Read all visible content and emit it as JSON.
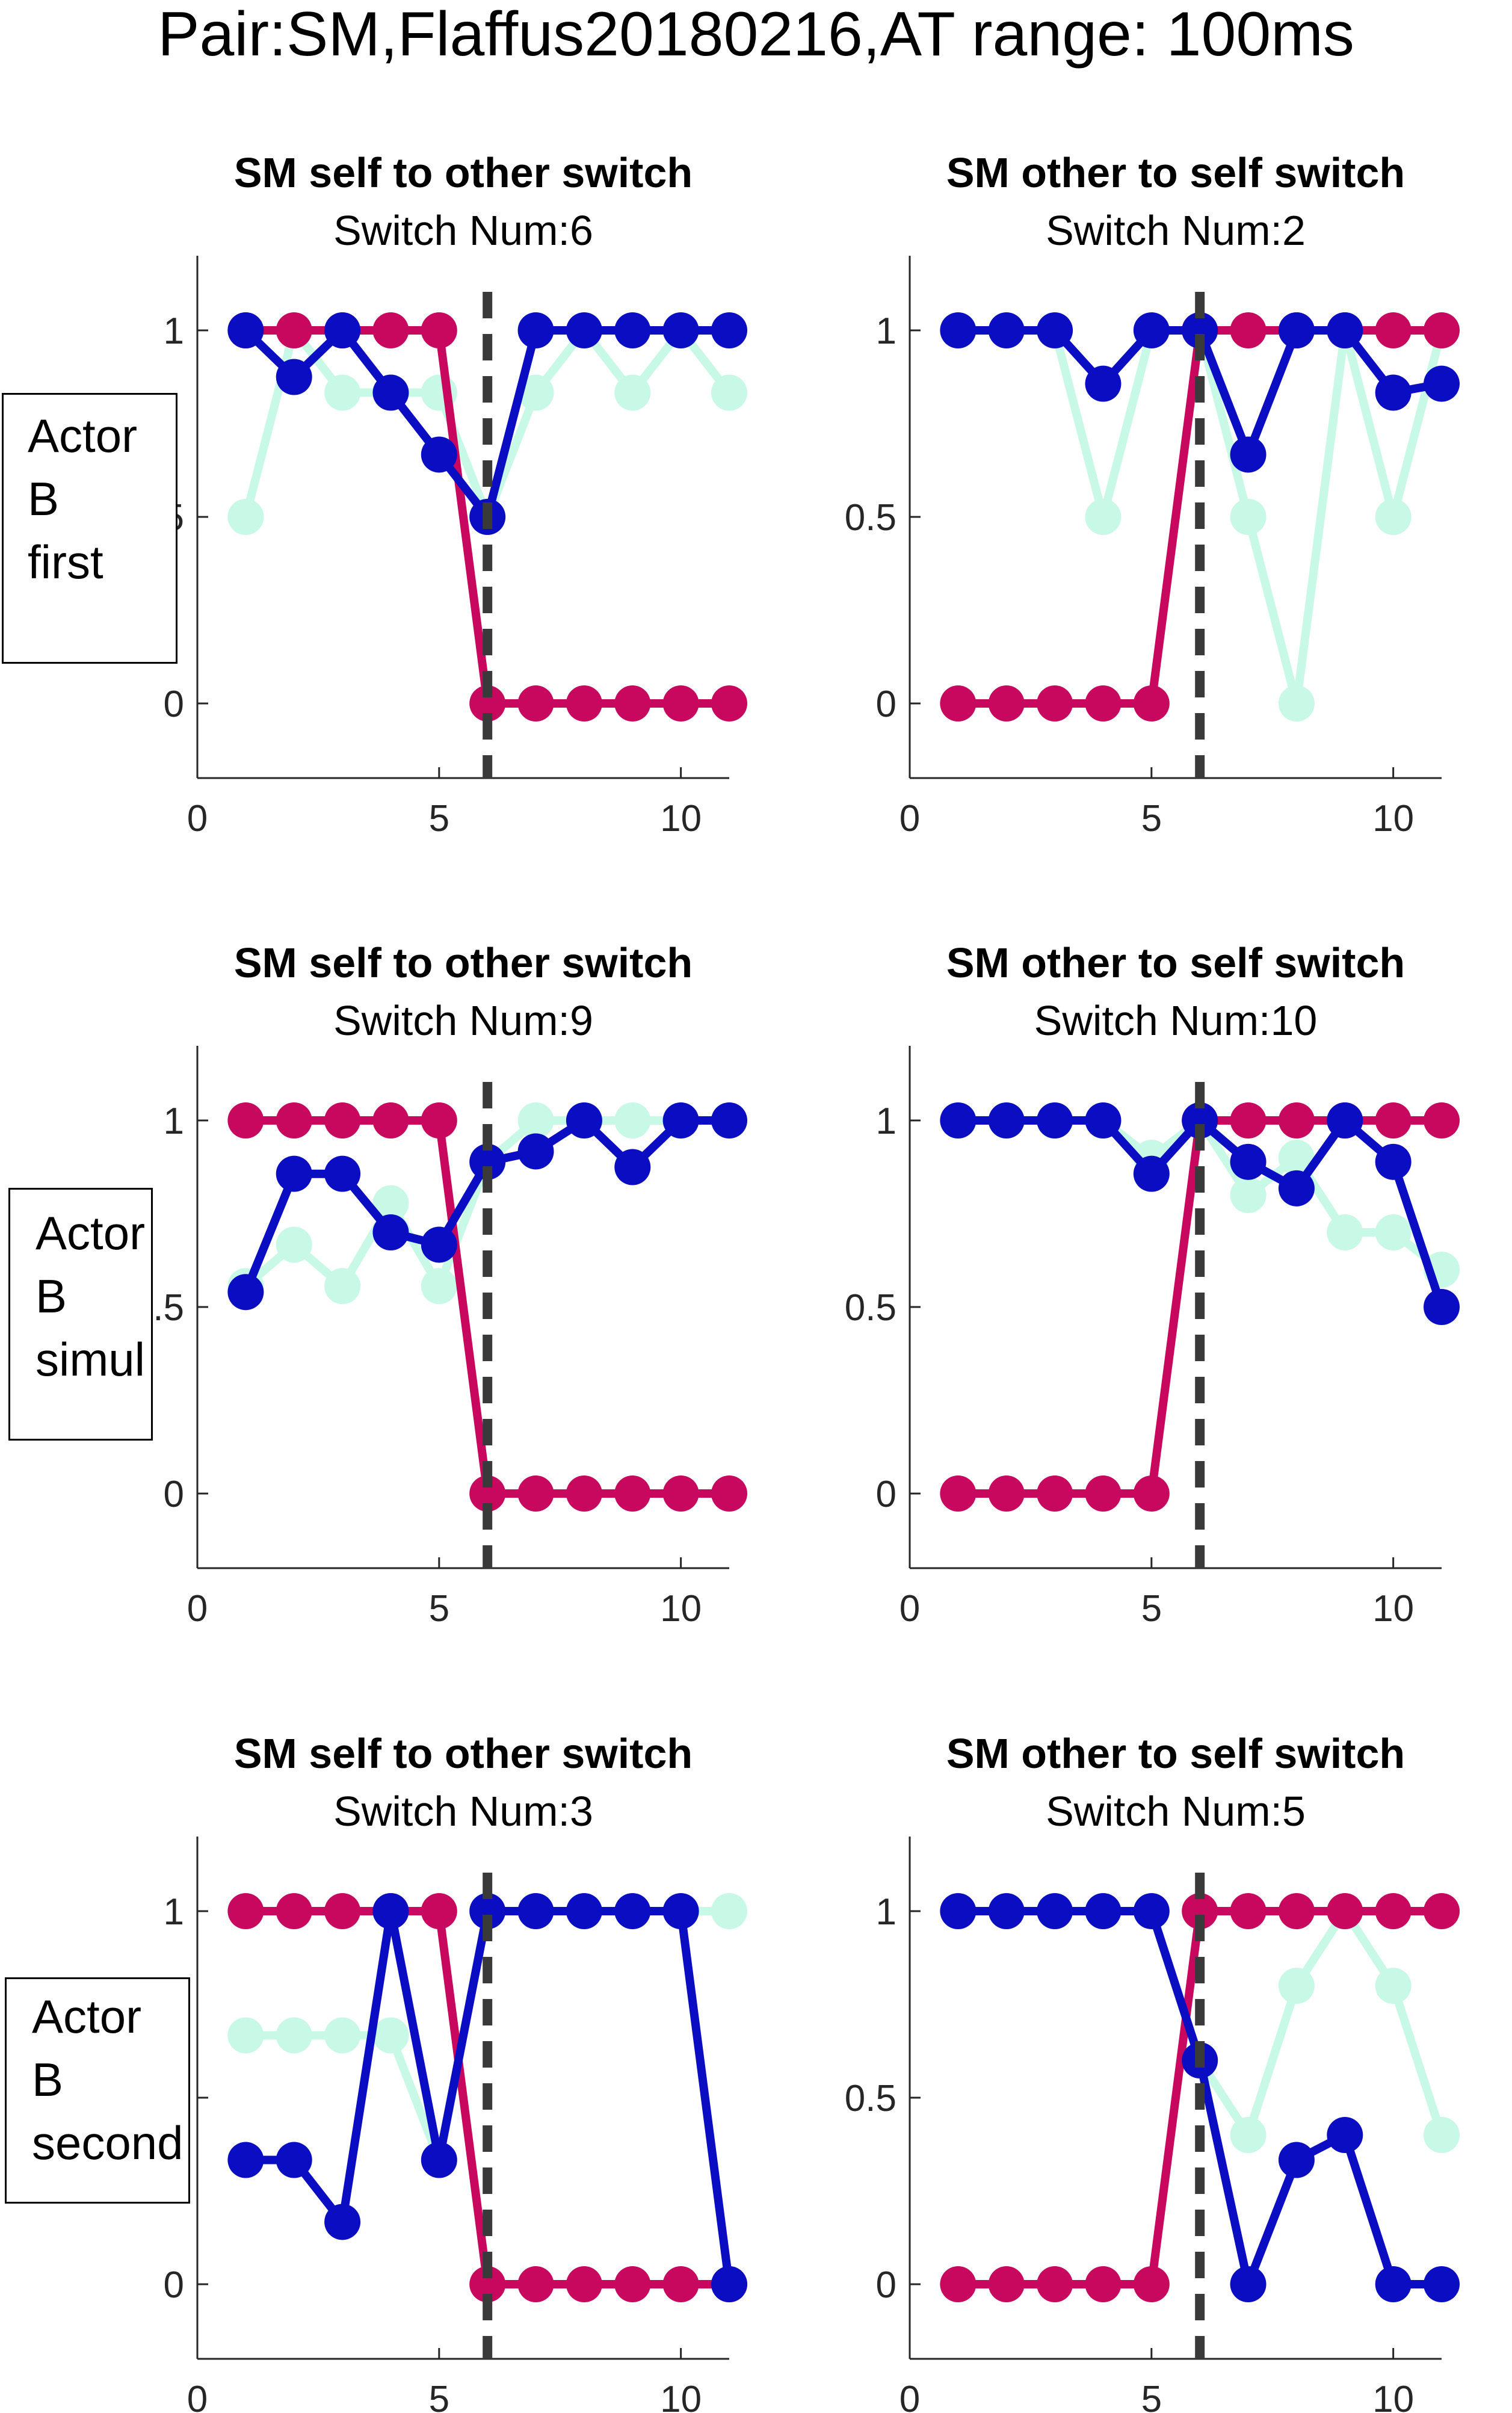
{
  "page": {
    "title": "Pair:SM,Flaffus20180216,AT range: 100ms"
  },
  "row_labels": [
    {
      "line1": "Actor",
      "line2": "B",
      "line3": "first"
    },
    {
      "line1": "Actor",
      "line2": "B",
      "line3": "simul"
    },
    {
      "line1": "Actor",
      "line2": "B",
      "line3": "second"
    }
  ],
  "colors": {
    "series_magenta": "#C8075F",
    "series_blue": "#0B0DC3",
    "series_mint": "#C8F8E6",
    "switch_line": "#3A3A3A",
    "axis": "#262626"
  },
  "chart_data": [
    {
      "type": "line",
      "title": "SM self to other switch",
      "subtitle": "Switch Num:6",
      "xlim": [
        0,
        11
      ],
      "ylim": [
        -0.2,
        1.2
      ],
      "xticks": [
        0,
        5,
        10
      ],
      "yticks": [
        0,
        0.5,
        1
      ],
      "ytick_labels": [
        "0",
        "0.5",
        "1"
      ],
      "switch_x": 6,
      "x": [
        1,
        2,
        3,
        4,
        5,
        6,
        7,
        8,
        9,
        10,
        11
      ],
      "series": [
        {
          "color": "#C8075F",
          "values": [
            1,
            1,
            1,
            1,
            1,
            0,
            0,
            0,
            0,
            0,
            0
          ]
        },
        {
          "color": "#0B0DC3",
          "values": [
            1,
            0.875,
            1,
            0.833,
            0.667,
            0.5,
            1,
            1,
            1,
            1,
            1
          ]
        },
        {
          "color": "#C8F8E6",
          "values": [
            0.5,
            1,
            0.833,
            0.833,
            0.833,
            0.5,
            0.833,
            1,
            0.833,
            1,
            0.833
          ]
        }
      ]
    },
    {
      "type": "line",
      "title": "SM other to self switch",
      "subtitle": "Switch Num:2",
      "xlim": [
        0,
        11
      ],
      "ylim": [
        -0.2,
        1.2
      ],
      "xticks": [
        0,
        5,
        10
      ],
      "yticks": [
        0,
        0.5,
        1
      ],
      "ytick_labels": [
        "0",
        "0.5",
        "1"
      ],
      "switch_x": 6,
      "x": [
        1,
        2,
        3,
        4,
        5,
        6,
        7,
        8,
        9,
        10,
        11
      ],
      "series": [
        {
          "color": "#C8075F",
          "values": [
            0,
            0,
            0,
            0,
            0,
            1,
            1,
            1,
            1,
            1,
            1
          ]
        },
        {
          "color": "#0B0DC3",
          "values": [
            1,
            1,
            1,
            0.857,
            1,
            1,
            0.667,
            1,
            1,
            0.833,
            0.857
          ]
        },
        {
          "color": "#C8F8E6",
          "values": [
            1,
            1,
            1,
            0.5,
            1,
            1,
            0.5,
            0,
            1,
            0.5,
            1
          ]
        }
      ]
    },
    {
      "type": "line",
      "title": "SM self to other switch",
      "subtitle": "Switch Num:9",
      "xlim": [
        0,
        11
      ],
      "ylim": [
        -0.2,
        1.2
      ],
      "xticks": [
        0,
        5,
        10
      ],
      "yticks": [
        0,
        0.5,
        1
      ],
      "ytick_labels": [
        "0",
        "0.5",
        "1"
      ],
      "switch_x": 6,
      "x": [
        1,
        2,
        3,
        4,
        5,
        6,
        7,
        8,
        9,
        10,
        11
      ],
      "series": [
        {
          "color": "#C8075F",
          "values": [
            1,
            1,
            1,
            1,
            1,
            0,
            0,
            0,
            0,
            0,
            0
          ]
        },
        {
          "color": "#0B0DC3",
          "values": [
            0.54,
            0.857,
            0.857,
            0.7,
            0.667,
            0.889,
            0.917,
            1,
            0.875,
            1,
            1
          ]
        },
        {
          "color": "#C8F8E6",
          "values": [
            0.556,
            0.667,
            0.556,
            0.778,
            0.556,
            0.889,
            1,
            1,
            1,
            1,
            1
          ]
        }
      ]
    },
    {
      "type": "line",
      "title": "SM other to self switch",
      "subtitle": "Switch Num:10",
      "xlim": [
        0,
        11
      ],
      "ylim": [
        -0.2,
        1.2
      ],
      "xticks": [
        0,
        5,
        10
      ],
      "yticks": [
        0,
        0.5,
        1
      ],
      "ytick_labels": [
        "0",
        "0.5",
        "1"
      ],
      "switch_x": 6,
      "x": [
        1,
        2,
        3,
        4,
        5,
        6,
        7,
        8,
        9,
        10,
        11
      ],
      "series": [
        {
          "color": "#C8075F",
          "values": [
            0,
            0,
            0,
            0,
            0,
            1,
            1,
            1,
            1,
            1,
            1
          ]
        },
        {
          "color": "#0B0DC3",
          "values": [
            1,
            1,
            1,
            1,
            0.857,
            1,
            0.889,
            0.818,
            1,
            0.889,
            0.5
          ]
        },
        {
          "color": "#C8F8E6",
          "values": [
            1,
            1,
            1,
            1,
            0.9,
            1,
            0.8,
            0.9,
            0.7,
            0.7,
            0.6
          ]
        }
      ]
    },
    {
      "type": "line",
      "title": "SM self to other switch",
      "subtitle": "Switch Num:3",
      "xlim": [
        0,
        11
      ],
      "ylim": [
        -0.2,
        1.2
      ],
      "xticks": [
        0,
        5,
        10
      ],
      "yticks": [
        0,
        0.5,
        1
      ],
      "ytick_labels": [
        "0",
        "0.5",
        "1"
      ],
      "switch_x": 6,
      "x": [
        1,
        2,
        3,
        4,
        5,
        6,
        7,
        8,
        9,
        10,
        11
      ],
      "series": [
        {
          "color": "#C8075F",
          "values": [
            1,
            1,
            1,
            1,
            1,
            0,
            0,
            0,
            0,
            0,
            0
          ]
        },
        {
          "color": "#0B0DC3",
          "values": [
            0.333,
            0.333,
            0.167,
            1,
            0.333,
            1,
            1,
            1,
            1,
            1,
            0
          ]
        },
        {
          "color": "#C8F8E6",
          "values": [
            0.667,
            0.667,
            0.667,
            0.667,
            0.333,
            1,
            1,
            1,
            1,
            1,
            1
          ]
        }
      ]
    },
    {
      "type": "line",
      "title": "SM other to self switch",
      "subtitle": "Switch Num:5",
      "xlim": [
        0,
        11
      ],
      "ylim": [
        -0.2,
        1.2
      ],
      "xticks": [
        0,
        5,
        10
      ],
      "yticks": [
        0,
        0.5,
        1
      ],
      "ytick_labels": [
        "0",
        "0.5",
        "1"
      ],
      "switch_x": 6,
      "x": [
        1,
        2,
        3,
        4,
        5,
        6,
        7,
        8,
        9,
        10,
        11
      ],
      "series": [
        {
          "color": "#C8075F",
          "values": [
            0,
            0,
            0,
            0,
            0,
            1,
            1,
            1,
            1,
            1,
            1
          ]
        },
        {
          "color": "#0B0DC3",
          "values": [
            1,
            1,
            1,
            1,
            1,
            0.6,
            0,
            0.333,
            0.4,
            0,
            0
          ]
        },
        {
          "color": "#C8F8E6",
          "values": [
            1,
            1,
            1,
            1,
            1,
            0.6,
            0.4,
            0.8,
            1,
            0.8,
            0.4
          ]
        }
      ]
    }
  ]
}
